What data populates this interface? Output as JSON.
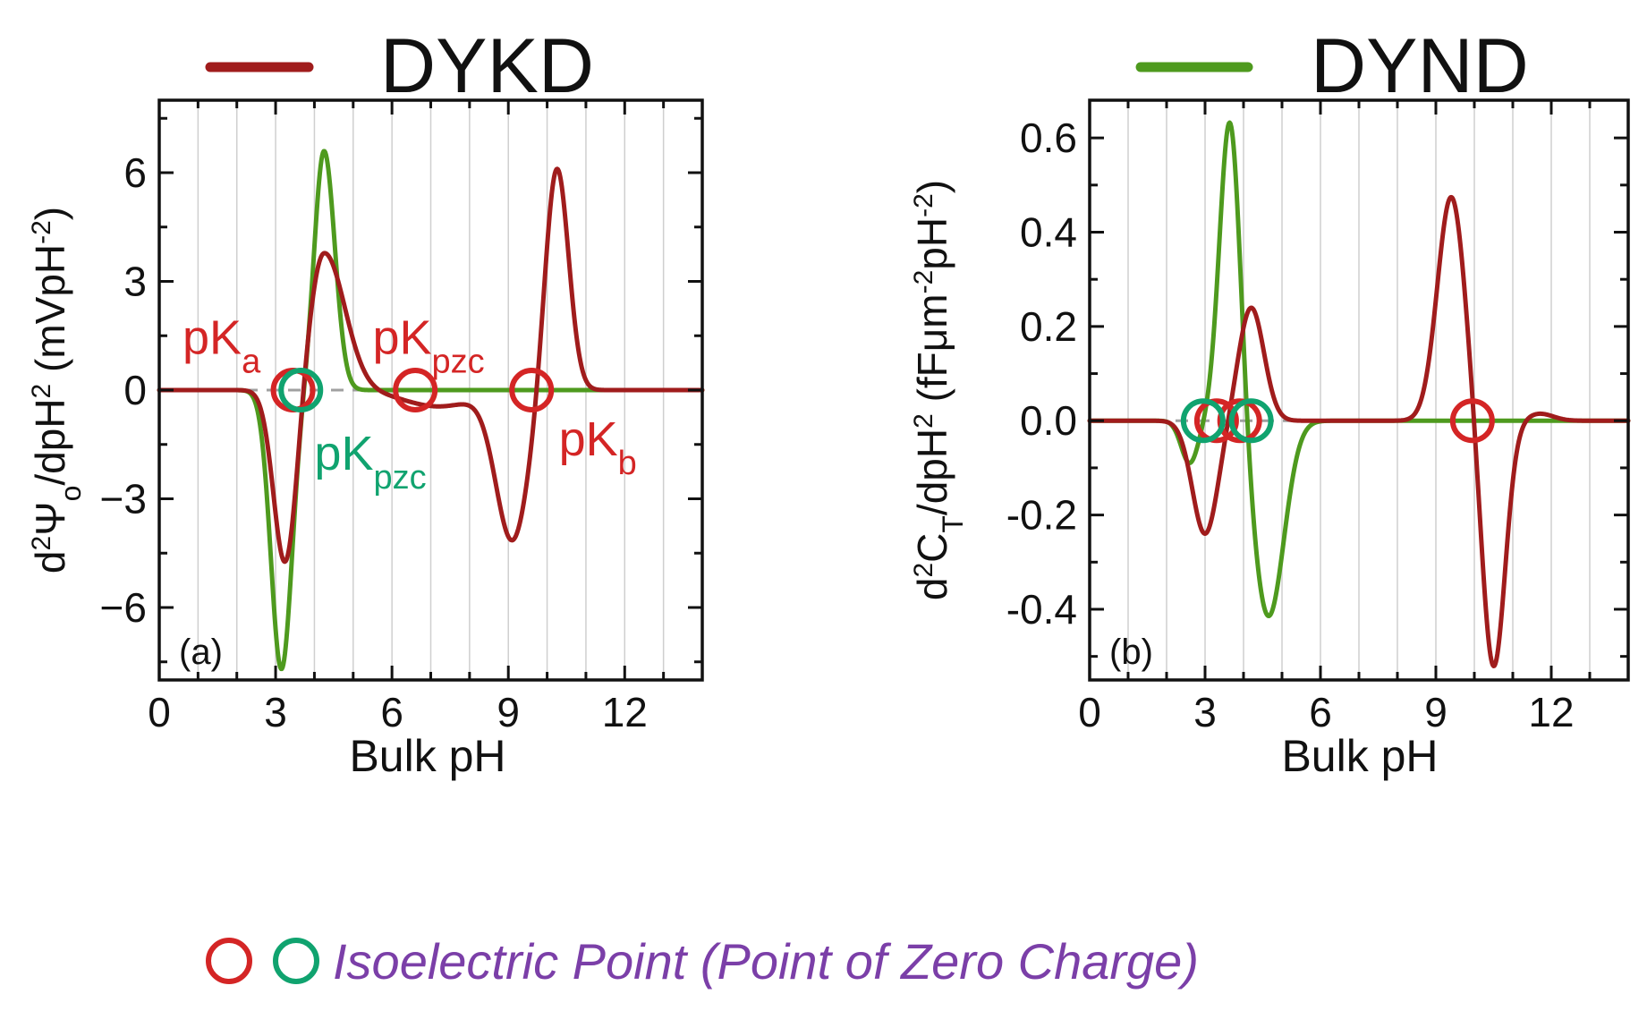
{
  "colors": {
    "dykd": "#a01c1c",
    "dynd": "#4e9a1e",
    "pzc_marker": "#10a36f",
    "iep_red": "#d42525",
    "footer_text": "#7b3fa8",
    "annot_red": "#d42525",
    "annot_green": "#10a36f"
  },
  "legend": {
    "dykd_label": "DYKD",
    "dynd_label": "DYND"
  },
  "footer": {
    "text": "Isoelectric Point (Point of Zero Charge)"
  },
  "chart_data": [
    {
      "panel": "(a)",
      "type": "line",
      "xlabel": "Bulk pH",
      "ylabel_parts": [
        "d",
        "2",
        "Ψ",
        "o",
        "/dpH",
        "2",
        " (mVpH",
        "-2",
        ")"
      ],
      "xlim": [
        0,
        14
      ],
      "ylim": [
        -8,
        8
      ],
      "xticks": [
        0,
        3,
        6,
        9,
        12
      ],
      "xticklabels": [
        "0",
        "3",
        "6",
        "9",
        "12"
      ],
      "yticks": [
        -6,
        -3,
        0,
        3,
        6
      ],
      "yticklabels": [
        "−6",
        "−3",
        "0",
        "3",
        "6"
      ],
      "series": [
        {
          "name": "DYKD",
          "color": "#a01c1c",
          "terms": [
            {
              "a": -4.85,
              "mu": 3.25,
              "s": 0.3
            },
            {
              "a": 3.8,
              "mu": 4.25,
              "s": 0.38,
              "tail": 1.4
            },
            {
              "a": -0.45,
              "mu": 7.2,
              "s": 0.9
            },
            {
              "a": -4.1,
              "mu": 9.1,
              "s": 0.42
            },
            {
              "a": 6.2,
              "mu": 10.25,
              "s": 0.3
            }
          ]
        },
        {
          "name": "DYND",
          "color": "#4e9a1e",
          "terms": [
            {
              "a": -7.7,
              "mu": 3.15,
              "s": 0.27
            },
            {
              "a": 6.6,
              "mu": 4.25,
              "s": 0.25,
              "tail": 1.1
            }
          ]
        }
      ],
      "markers": [
        {
          "x": 3.45,
          "y": 0,
          "color": "#d42525"
        },
        {
          "x": 6.6,
          "y": 0,
          "color": "#d42525"
        },
        {
          "x": 9.6,
          "y": 0,
          "color": "#d42525"
        },
        {
          "x": 3.65,
          "y": 0,
          "color": "#10a36f"
        }
      ],
      "annotations": [
        {
          "text": "pK",
          "sub": "a",
          "x": 0.6,
          "y": 1.0,
          "color": "#d42525"
        },
        {
          "text": "pK",
          "sub": "pzc",
          "x": 5.5,
          "y": 1.0,
          "color": "#d42525"
        },
        {
          "text": "pK",
          "sub": "pzc",
          "x": 4.0,
          "y": -2.2,
          "color": "#10a36f"
        },
        {
          "text": "pK",
          "sub": "b",
          "x": 10.3,
          "y": -1.8,
          "color": "#d42525"
        }
      ]
    },
    {
      "panel": "(b)",
      "type": "line",
      "xlabel": "Bulk pH",
      "ylabel_parts": [
        "d",
        "2",
        "C",
        "T",
        "/dpH",
        "2",
        " (fFμm",
        "-2",
        "pH",
        "-2",
        ")"
      ],
      "xlim": [
        0,
        14
      ],
      "ylim": [
        -0.55,
        0.68
      ],
      "xticks": [
        0,
        3,
        6,
        9,
        12
      ],
      "xticklabels": [
        "0",
        "3",
        "6",
        "9",
        "12"
      ],
      "yticks": [
        -0.4,
        -0.2,
        0.0,
        0.2,
        0.4,
        0.6
      ],
      "yticklabels": [
        "-0.4",
        "-0.2",
        "0.0",
        "0.2",
        "0.4",
        "0.6"
      ],
      "series": [
        {
          "name": "DYKD",
          "color": "#a01c1c",
          "terms": [
            {
              "a": -0.24,
              "mu": 3.0,
              "s": 0.33
            },
            {
              "a": 0.24,
              "mu": 4.2,
              "s": 0.33
            },
            {
              "a": 0.475,
              "mu": 9.4,
              "s": 0.36
            },
            {
              "a": -0.525,
              "mu": 10.5,
              "s": 0.3
            },
            {
              "a": 0.015,
              "mu": 11.7,
              "s": 0.35
            }
          ]
        },
        {
          "name": "DYND",
          "color": "#4e9a1e",
          "terms": [
            {
              "a": -0.09,
              "mu": 2.6,
              "s": 0.22
            },
            {
              "a": 0.65,
              "mu": 3.65,
              "s": 0.27
            },
            {
              "a": -0.415,
              "mu": 4.65,
              "s": 0.4
            }
          ]
        }
      ],
      "markers": [
        {
          "x": 3.3,
          "y": 0,
          "color": "#d42525"
        },
        {
          "x": 3.9,
          "y": 0,
          "color": "#d42525"
        },
        {
          "x": 9.95,
          "y": 0,
          "color": "#d42525"
        },
        {
          "x": 2.95,
          "y": 0,
          "color": "#10a36f"
        },
        {
          "x": 4.2,
          "y": 0,
          "color": "#10a36f"
        }
      ],
      "annotations": []
    }
  ]
}
